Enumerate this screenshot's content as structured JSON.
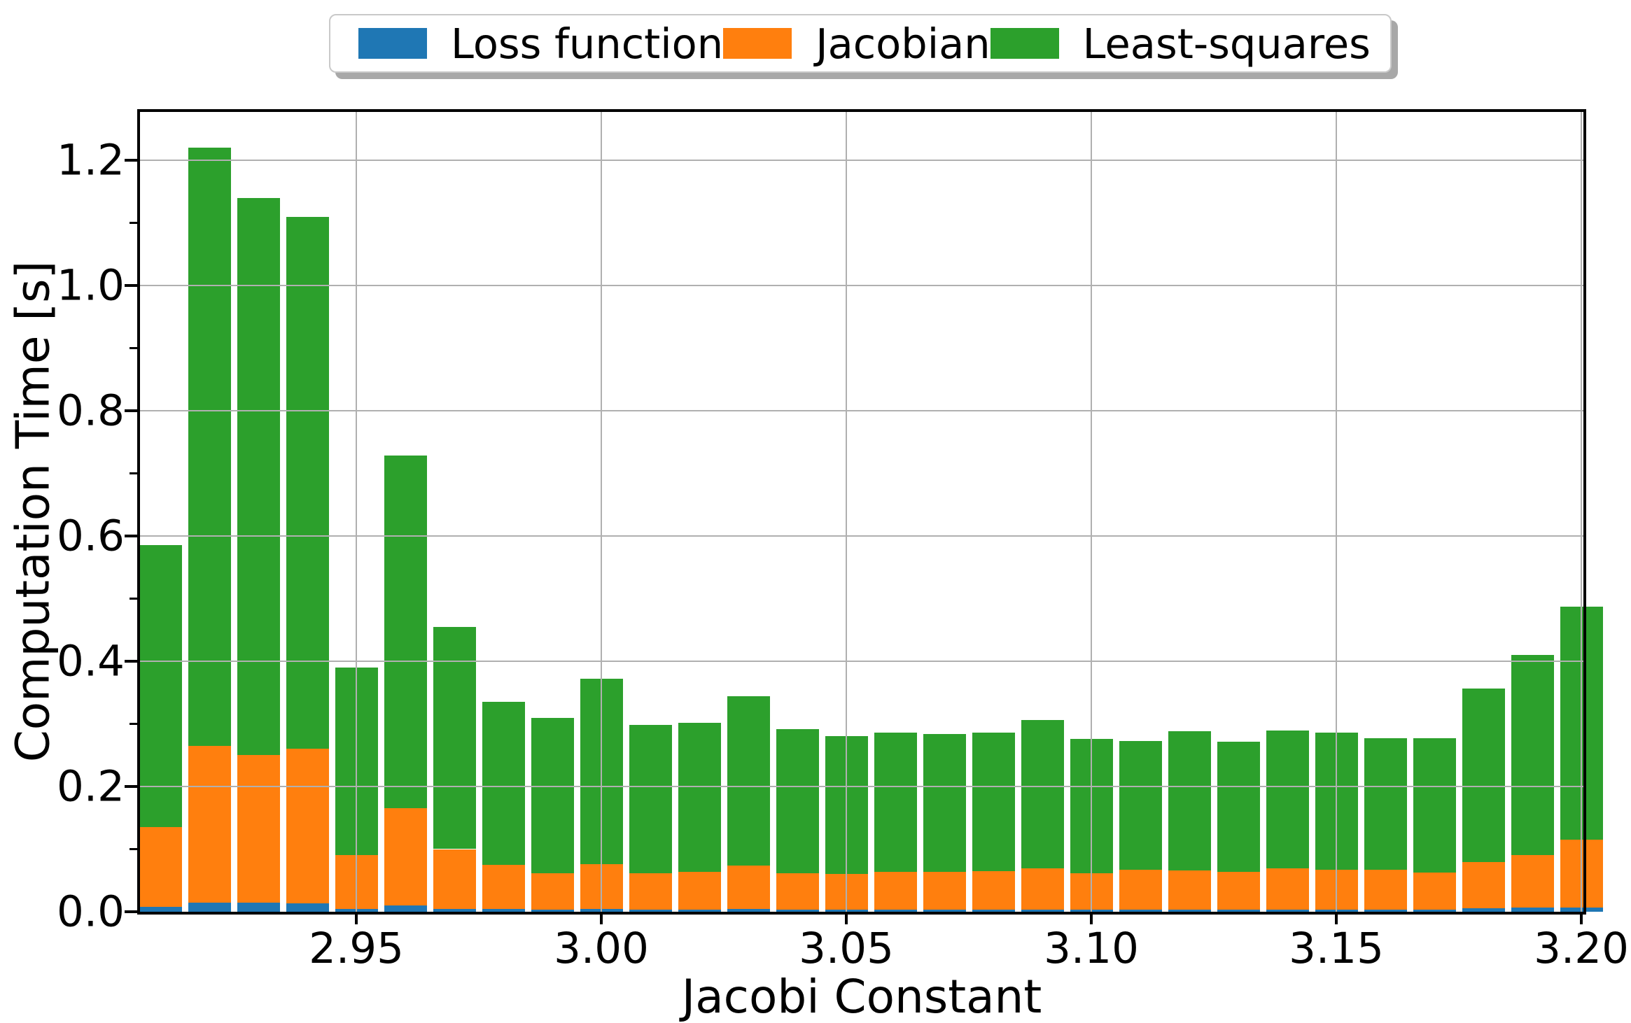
{
  "figure": {
    "background": "#ffffff"
  },
  "legend": {
    "items": [
      {
        "label": "Loss function",
        "color": "#1f77b4"
      },
      {
        "label": "Jacobian",
        "color": "#ff7f0e"
      },
      {
        "label": "Least-squares",
        "color": "#2ca02c"
      }
    ]
  },
  "colors": {
    "grid": "#b0b0b0",
    "spine": "#000000",
    "text": "#000000",
    "shadow": "#a8a8a8"
  },
  "chart_data": {
    "type": "bar",
    "stacked": true,
    "title": "",
    "xlabel": "Jacobi Constant",
    "ylabel": "Computation Time [s]",
    "xlim": [
      2.9055,
      3.2005
    ],
    "ylim": [
      0,
      1.277
    ],
    "grid": true,
    "grid_above_bars": true,
    "legend_position": "top-center-outside",
    "bar_width": 0.0087,
    "x": [
      2.91,
      2.92,
      2.93,
      2.94,
      2.95,
      2.96,
      2.97,
      2.98,
      2.99,
      3.0,
      3.01,
      3.02,
      3.03,
      3.04,
      3.05,
      3.06,
      3.07,
      3.08,
      3.09,
      3.1,
      3.11,
      3.12,
      3.13,
      3.14,
      3.15,
      3.16,
      3.17,
      3.18,
      3.19,
      3.2
    ],
    "series": [
      {
        "name": "Loss function",
        "color": "#1f77b4",
        "values": [
          0.008,
          0.015,
          0.015,
          0.013,
          0.005,
          0.01,
          0.005,
          0.005,
          0.003,
          0.004,
          0.003,
          0.003,
          0.005,
          0.003,
          0.003,
          0.003,
          0.003,
          0.003,
          0.003,
          0.003,
          0.003,
          0.003,
          0.003,
          0.003,
          0.003,
          0.003,
          0.003,
          0.006,
          0.007,
          0.007
        ]
      },
      {
        "name": "Jacobian",
        "color": "#ff7f0e",
        "values": [
          0.127,
          0.25,
          0.235,
          0.247,
          0.085,
          0.155,
          0.095,
          0.07,
          0.059,
          0.072,
          0.059,
          0.061,
          0.069,
          0.058,
          0.057,
          0.061,
          0.061,
          0.062,
          0.066,
          0.058,
          0.064,
          0.063,
          0.061,
          0.066,
          0.064,
          0.064,
          0.06,
          0.073,
          0.083,
          0.108
        ]
      },
      {
        "name": "Least-squares",
        "color": "#2ca02c",
        "values": [
          0.45,
          0.955,
          0.89,
          0.85,
          0.3,
          0.563,
          0.355,
          0.26,
          0.248,
          0.296,
          0.236,
          0.238,
          0.27,
          0.231,
          0.22,
          0.222,
          0.22,
          0.221,
          0.237,
          0.215,
          0.206,
          0.222,
          0.207,
          0.22,
          0.219,
          0.21,
          0.214,
          0.277,
          0.32,
          0.372
        ]
      }
    ],
    "x_ticks": {
      "major": [
        2.95,
        3.0,
        3.05,
        3.1,
        3.15,
        3.2
      ],
      "labels": [
        "2.95",
        "3.00",
        "3.05",
        "3.10",
        "3.15",
        "3.20"
      ]
    },
    "y_ticks": {
      "major": [
        0.0,
        0.2,
        0.4,
        0.6,
        0.8,
        1.0,
        1.2
      ],
      "labels": [
        "0.0",
        "0.2",
        "0.4",
        "0.6",
        "0.8",
        "1.0",
        "1.2"
      ],
      "minor": [
        0.1,
        0.3,
        0.5,
        0.7,
        0.9,
        1.1
      ]
    }
  }
}
